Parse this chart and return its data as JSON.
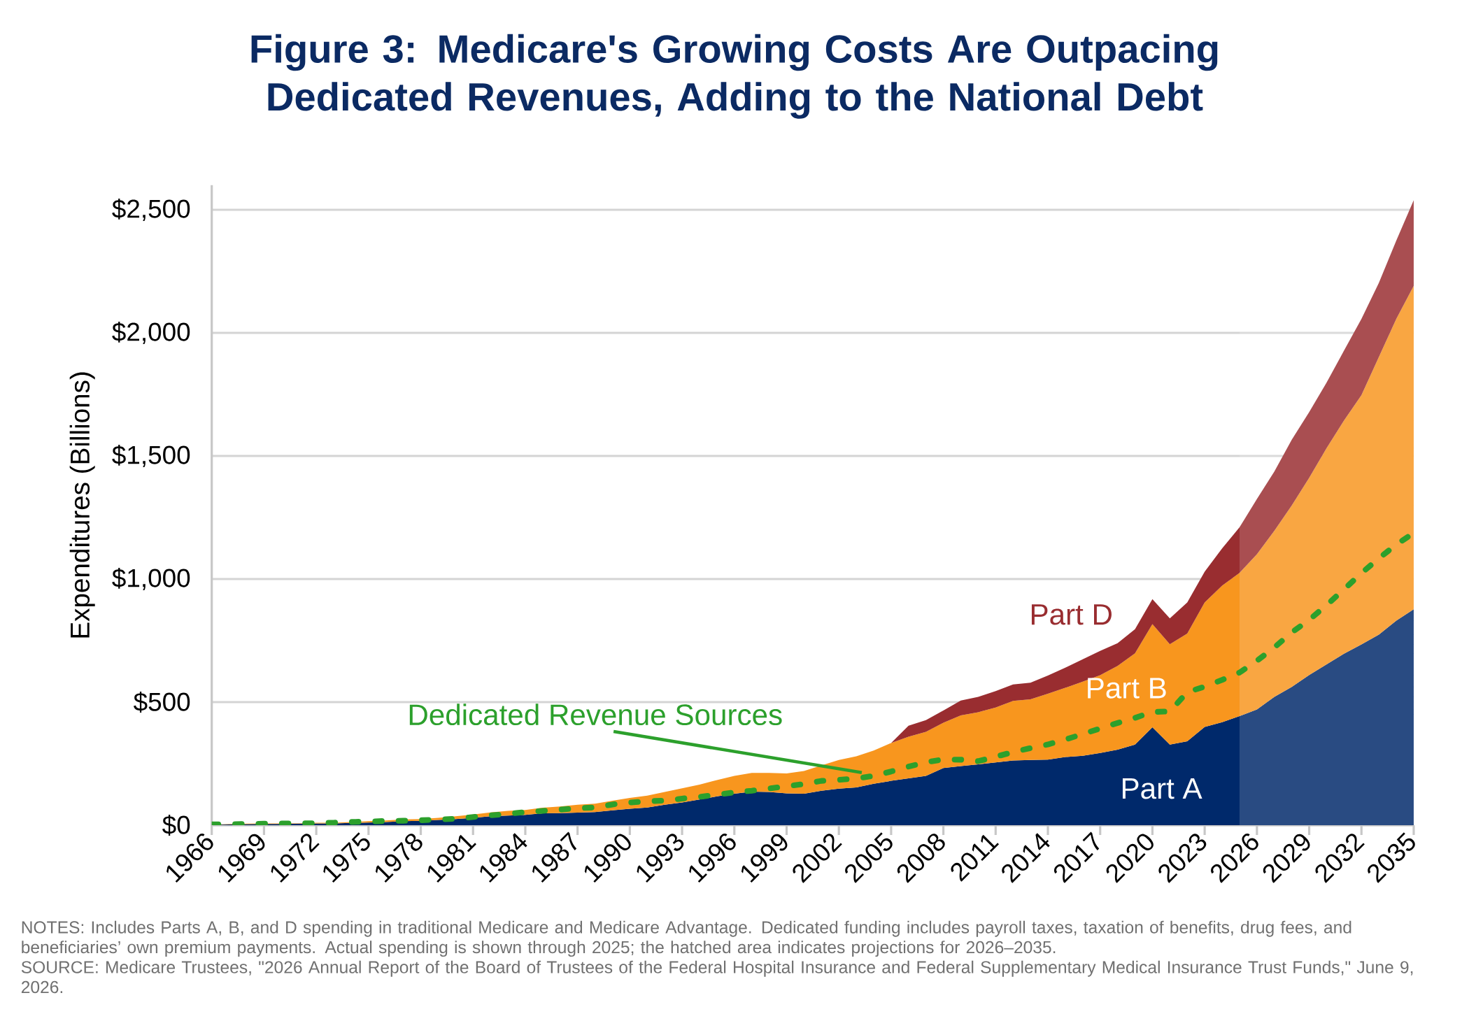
{
  "chart_data": {
    "type": "area",
    "stacked": true,
    "title": "Figure 3: Medicare's Growing Costs Are Outpacing Dedicated Revenues, Adding to the National Debt",
    "ylabel": "Expenditures (Billions)",
    "x": [
      1966,
      1967,
      1968,
      1969,
      1970,
      1971,
      1972,
      1973,
      1974,
      1975,
      1976,
      1977,
      1978,
      1979,
      1980,
      1981,
      1982,
      1983,
      1984,
      1985,
      1986,
      1987,
      1988,
      1989,
      1990,
      1991,
      1992,
      1993,
      1994,
      1995,
      1996,
      1997,
      1998,
      1999,
      2000,
      2001,
      2002,
      2003,
      2004,
      2005,
      2006,
      2007,
      2008,
      2009,
      2010,
      2011,
      2012,
      2013,
      2014,
      2015,
      2016,
      2017,
      2018,
      2019,
      2020,
      2021,
      2022,
      2023,
      2024,
      2025,
      2026,
      2027,
      2028,
      2029,
      2030,
      2031,
      2032,
      2033,
      2034,
      2035
    ],
    "xlim": [
      1966,
      2035
    ],
    "xticks": [
      1966,
      1969,
      1972,
      1975,
      1978,
      1981,
      1984,
      1987,
      1990,
      1993,
      1996,
      1999,
      2002,
      2005,
      2008,
      2011,
      2014,
      2017,
      2020,
      2023,
      2026,
      2029,
      2032,
      2035
    ],
    "ylim": [
      0,
      2600
    ],
    "yticks": [
      {
        "value": 0,
        "label": "$0"
      },
      {
        "value": 500,
        "label": "$500"
      },
      {
        "value": 1000,
        "label": "$1,000"
      },
      {
        "value": 1500,
        "label": "$1,500"
      },
      {
        "value": 2000,
        "label": "$2,000"
      },
      {
        "value": 2500,
        "label": "$2,500"
      }
    ],
    "grid": "y",
    "series": [
      {
        "name": "Part A",
        "color": "#00296B",
        "values": [
          1,
          3,
          4,
          5,
          5,
          6,
          7,
          7,
          9,
          11,
          13,
          16,
          18,
          21,
          25,
          30,
          36,
          39,
          42,
          48,
          49,
          51,
          53,
          60,
          67,
          72,
          83,
          92,
          104,
          117,
          128,
          136,
          135,
          129,
          128,
          140,
          148,
          153,
          168,
          180,
          190,
          200,
          232,
          240,
          247,
          255,
          263,
          265,
          266,
          277,
          282,
          293,
          307,
          327,
          398,
          327,
          341,
          399,
          418,
          443,
          470,
          521,
          562,
          610,
          653,
          697,
          734,
          774,
          831,
          877
        ]
      },
      {
        "name": "Part B",
        "color": "#F8961E",
        "values": [
          0,
          1,
          2,
          2,
          2,
          2,
          3,
          3,
          4,
          5,
          6,
          7,
          7,
          9,
          11,
          13,
          16,
          19,
          20,
          23,
          27,
          32,
          34,
          39,
          44,
          48,
          52,
          58,
          61,
          66,
          72,
          76,
          77,
          81,
          92,
          103,
          117,
          127,
          135,
          154,
          169,
          179,
          184,
          206,
          212,
          223,
          242,
          246,
          268,
          281,
          301,
          316,
          340,
          371,
          419,
          408,
          437,
          506,
          555,
          582,
          631,
          675,
          737,
          801,
          879,
          947,
          1013,
          1128,
          1226,
          1314
        ]
      },
      {
        "name": "Part D",
        "color": "#992D30",
        "values": [
          0,
          0,
          0,
          0,
          0,
          0,
          0,
          0,
          0,
          0,
          0,
          0,
          0,
          0,
          0,
          0,
          0,
          0,
          0,
          0,
          0,
          0,
          0,
          0,
          0,
          0,
          0,
          0,
          0,
          0,
          0,
          0,
          0,
          0,
          0,
          0,
          0,
          0,
          0,
          0,
          45,
          48,
          50,
          60,
          62,
          67,
          67,
          68,
          74,
          82,
          91,
          99,
          92,
          98,
          101,
          105,
          127,
          125,
          151,
          185,
          224,
          241,
          267,
          267,
          266,
          284,
          310,
          301,
          318,
          348
        ]
      },
      {
        "name": "Dedicated Revenue Sources",
        "type": "line",
        "line_style": "dashed",
        "color": "#2CA02C",
        "values": [
          3,
          4,
          5,
          6,
          7,
          7,
          8,
          10,
          13,
          15,
          17,
          18,
          20,
          23,
          26,
          33,
          40,
          46,
          53,
          58,
          63,
          69,
          72,
          84,
          92,
          97,
          100,
          108,
          115,
          124,
          133,
          140,
          149,
          158,
          167,
          180,
          184,
          190,
          200,
          218,
          238,
          256,
          267,
          266,
          260,
          278,
          297,
          313,
          328,
          348,
          370,
          393,
          415,
          436,
          460,
          462,
          540,
          563,
          590,
          620,
          668,
          722,
          783,
          834,
          894,
          958,
          1024,
          1084,
          1140,
          1187
        ]
      }
    ],
    "bands": [
      {
        "axis": "x",
        "from": 2025,
        "to": 2035,
        "color": "#FFFFFF"
      }
    ],
    "annotations": [
      "NOTES: Includes Parts A, B, and D spending in traditional Medicare and Medicare Advantage. Dedicated funding includes payroll taxes, taxation of benefits, drug fees, and beneficiaries’ own premium payments. Actual spending is shown through 2025; the hatched area indicates projections for 2026–2035.",
      "SOURCE: Medicare Trustees, \"2026 Annual Report of the Board of Trustees of the Federal Hospital Insurance and Federal Supplementary Medical Insurance Trust Funds,\" June 9, 2026."
    ]
  }
}
